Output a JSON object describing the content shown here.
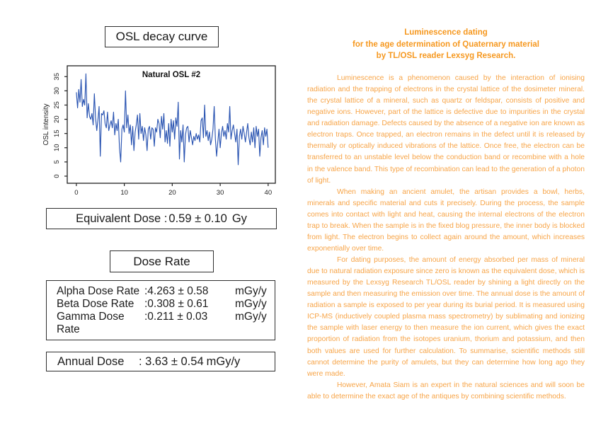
{
  "left": {
    "decay_title": "OSL decay curve",
    "equivalent_dose": {
      "label": "Equivalent Dose :",
      "value": "0.59 ± 0.10",
      "unit": "Gy"
    },
    "dose_rate_title": "Dose Rate",
    "dose_rates": [
      {
        "label": "Alpha Dose Rate",
        "value": ":4.263 ± 0.58",
        "unit": "mGy/y"
      },
      {
        "label": "Beta Dose Rate",
        "value": ":0.308 ± 0.61",
        "unit": "mGy/y"
      },
      {
        "label": "Gamma Dose Rate",
        "value": ":0.211 ± 0.03",
        "unit": "mGy/y"
      }
    ],
    "annual_dose": {
      "label": "Annual Dose",
      "value": ": 3.63 ± 0.54",
      "unit": "mGy/y"
    }
  },
  "chart_data": {
    "type": "line",
    "title": "Natural OSL #2",
    "xlabel": "",
    "ylabel": "OSL intensity",
    "xlim": [
      0,
      40
    ],
    "ylim": [
      0,
      36
    ],
    "x_ticks": [
      0,
      10,
      20,
      30,
      40
    ],
    "y_ticks": [
      0,
      5,
      10,
      15,
      20,
      25,
      30,
      35
    ],
    "grid": false,
    "legend": "none",
    "line_color": "#2B55B2",
    "x_start": 0,
    "x_step": 0.25,
    "values": [
      29.5,
      24,
      30.5,
      26,
      34,
      24.5,
      27,
      25,
      36,
      20.5,
      25.5,
      21,
      20,
      22,
      18,
      29,
      20.5,
      16,
      20,
      24.5,
      7,
      22,
      21.5,
      23,
      18.5,
      17,
      22.5,
      16,
      18,
      19.5,
      17,
      22.5,
      14.5,
      18.5,
      16,
      20,
      10,
      5,
      16.5,
      18,
      15.5,
      30,
      17,
      21.5,
      15,
      18,
      11,
      17.5,
      9,
      15.5,
      18,
      21.5,
      13,
      22,
      15,
      17.5,
      12.5,
      17,
      14.5,
      9,
      16.5,
      17.5,
      13,
      17,
      16.5,
      10.5,
      17,
      15.5,
      20,
      18.5,
      13.5,
      21,
      16.5,
      22,
      12,
      16,
      11.5,
      18.5,
      10.5,
      20,
      15.5,
      19.5,
      13,
      20.5,
      17.5,
      26,
      6,
      16,
      12,
      18,
      5,
      14.5,
      17,
      17.5,
      12,
      16,
      13.5,
      11,
      14,
      12.5,
      15,
      13,
      14.5,
      12,
      19.5,
      20.5,
      13.5,
      25,
      14,
      16,
      12.5,
      15.5,
      11,
      13,
      16.5,
      24.5,
      13,
      7,
      12,
      16.5,
      10,
      15,
      17.5,
      14,
      16,
      13,
      18.5,
      15.5,
      24.5,
      13,
      16,
      18,
      15,
      12,
      16.5,
      4,
      14,
      16.5,
      13,
      17.5,
      15,
      12,
      15.5,
      18.5,
      13.5,
      11,
      15.5,
      12,
      17,
      10,
      17.5,
      14,
      16.5,
      7,
      13.5,
      16,
      11,
      17,
      14,
      16.5,
      10
    ]
  },
  "right": {
    "heading_lines": [
      "Luminescence dating",
      "for the age determination of Quaternary material",
      "by TL/OSL reader Lexsyg Research."
    ],
    "paragraphs": [
      "Luminescence is a phenomenon caused by the interaction of ionising radiation and the trapping of electrons in the crystal lattice of the dosimeter mineral. the crystal lattice of a mineral, such as quartz or feldspar, consists of positive and negative ions. However, part of the lattice is defective due to impurities in the crystal and radiation damage. Defects caused by the absence of a negative ion are known as electron traps. Once trapped, an electron remains in the defect until it is released by thermally or optically induced vibrations of the lattice. Once free, the electron can be transferred to an unstable level below the conduction band or recombine with a hole in the valence band. This type of recombination can lead to the generation of a photon of light.",
      "When making an ancient amulet, the artisan provides a bowl, herbs, minerals and specific material and cuts it precisely. During the process, the sample comes into contact with light and heat, causing the internal electrons of the electron trap to break. When the sample is in the fixed blog pressure, the inner body is blocked from light. The electron begins to collect again around the amount, which increases exponentially over time.",
      "For dating purposes, the amount of energy absorbed per mass of mineral due to natural radiation exposure since zero is known as the equivalent dose, which is measured by the Lexsyg Research TL/OSL reader by shining a light directly on the sample and then measuring the emission over time. The annual dose is the amount of radiation a sample is exposed to per year during its burial period. It is measured using ICP-MS (inductively coupled plasma mass spectrometry) by sublimating and ionizing the sample with laser energy to then measure the ion current, which gives the exact proportion of radiation from the isotopes uranium, thorium and potassium, and then both values are used for further calculation. To summarise, scientific methods still cannot determine the purity of amulets, but they can determine how long ago they were made.",
      "However, Amata Siam is an expert in the natural sciences and will soon be able to determine the exact age of the antiques by combining scientific methods."
    ]
  },
  "colors": {
    "heading_orange": "#F6981F",
    "body_orange": "#F7A447",
    "chart_line_blue": "#2B55B2",
    "ink": "#1c1c1c",
    "box_border": "#2e2e2e"
  }
}
